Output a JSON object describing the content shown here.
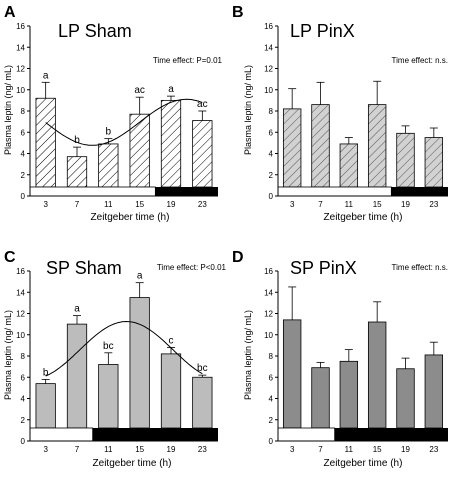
{
  "figure": {
    "x_tick_labels": [
      "3",
      "7",
      "11",
      "15",
      "19",
      "23"
    ]
  },
  "colors": {
    "light_hatch": "#ffffff",
    "gray_hatch": "#d2d2d2",
    "light_gray_bar": "#bcbcbc",
    "dark_gray_bar": "#8c8c8c",
    "line": "#000000",
    "dark_phase": "#000000"
  },
  "chart_data": [
    {
      "panel_letter": "A",
      "type": "bar",
      "title": "LP Sham",
      "annotation": "Time effect: P=0.01",
      "xlabel": "Zeitgeber time (h)",
      "ylabel": "Plasma leptin (ng/ mL)",
      "ylim": [
        0,
        16
      ],
      "yticks": [
        "0",
        "2",
        "4",
        "6",
        "8",
        "10",
        "12",
        "14",
        "16"
      ],
      "categories": [
        "3",
        "7",
        "11",
        "15",
        "19",
        "23"
      ],
      "values": [
        9.2,
        3.7,
        4.9,
        7.7,
        9.0,
        7.1
      ],
      "errors": [
        1.5,
        0.9,
        0.5,
        1.6,
        0.4,
        0.9
      ],
      "letters": [
        "a",
        "b",
        "b",
        "ac",
        "a",
        "ac"
      ],
      "bar_style": "hatched-white",
      "fitted_curve": true,
      "dark_phase_start": "17"
    },
    {
      "panel_letter": "B",
      "type": "bar",
      "title": "LP PinX",
      "annotation": "Time effect: n.s.",
      "xlabel": "Zeitgeber time (h)",
      "ylabel": "Plasma leptin (ng/ mL)",
      "ylim": [
        0,
        16
      ],
      "yticks": [
        "0",
        "2",
        "4",
        "6",
        "8",
        "10",
        "12",
        "14",
        "16"
      ],
      "categories": [
        "3",
        "7",
        "11",
        "15",
        "19",
        "23"
      ],
      "values": [
        8.2,
        8.6,
        4.9,
        8.6,
        5.9,
        5.5
      ],
      "errors": [
        1.9,
        2.1,
        0.6,
        2.2,
        0.7,
        0.9
      ],
      "letters": [],
      "bar_style": "hatched-gray",
      "fitted_curve": false,
      "dark_phase_start": "17"
    },
    {
      "panel_letter": "C",
      "type": "bar",
      "title": "SP Sham",
      "annotation": "Time effect: P<0.01",
      "xlabel": "Zeitgeber time (h)",
      "ylabel": "Plasma leptin (ng/ mL)",
      "ylim": [
        0,
        16
      ],
      "yticks": [
        "0",
        "2",
        "4",
        "6",
        "8",
        "10",
        "12",
        "14",
        "16"
      ],
      "categories": [
        "3",
        "7",
        "11",
        "15",
        "19",
        "23"
      ],
      "values": [
        5.4,
        11.0,
        7.2,
        13.5,
        8.2,
        6.0
      ],
      "errors": [
        0.4,
        0.8,
        1.1,
        1.4,
        0.6,
        0.2
      ],
      "letters": [
        "b",
        "a",
        "bc",
        "a",
        "c",
        "bc"
      ],
      "bar_style": "solid-light",
      "fitted_curve": true,
      "dark_phase_start": "9"
    },
    {
      "panel_letter": "D",
      "type": "bar",
      "title": "SP PinX",
      "annotation": "Time effect: n.s.",
      "xlabel": "Zeitgeber time (h)",
      "ylabel": "Plasma leptin (ng/ mL)",
      "ylim": [
        0,
        16
      ],
      "yticks": [
        "0",
        "2",
        "4",
        "6",
        "8",
        "10",
        "12",
        "14",
        "16"
      ],
      "categories": [
        "3",
        "7",
        "11",
        "15",
        "19",
        "23"
      ],
      "values": [
        11.4,
        6.9,
        7.5,
        11.2,
        6.8,
        8.1
      ],
      "errors": [
        3.1,
        0.5,
        1.1,
        1.9,
        1.0,
        1.2
      ],
      "letters": [],
      "bar_style": "solid-dark",
      "fitted_curve": false,
      "dark_phase_start": "9"
    }
  ]
}
